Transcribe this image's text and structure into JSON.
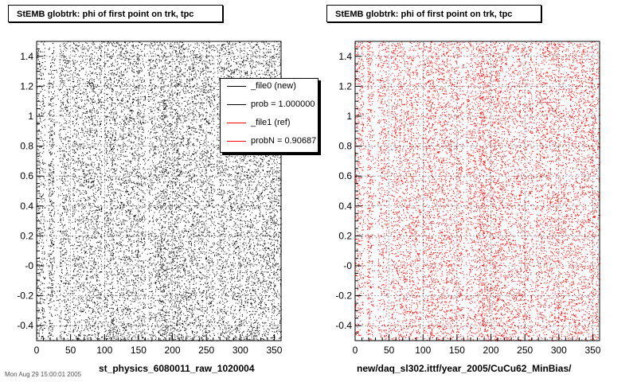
{
  "chart_data": [
    {
      "type": "scatter",
      "title": "StEMB globtrk: phi of first point on trk, tpc",
      "xlabel": "st_physics_6080011_raw_1020004",
      "ylabel": "",
      "xlim": [
        0,
        360
      ],
      "ylim": [
        -0.5,
        1.5
      ],
      "xticks": [
        "0",
        "50",
        "100",
        "150",
        "200",
        "250",
        "300",
        "350"
      ],
      "yticks": [
        "-0.4",
        "-0.2",
        "-0",
        "0.2",
        "0.4",
        "0.6",
        "0.8",
        "1",
        "1.2",
        "1.4"
      ],
      "grid": true,
      "marker_color": "#000000",
      "point_count_estimate": 14000,
      "legend": {
        "placement": "top-right",
        "entries": [
          {
            "label": "_file0 (new)",
            "color": "#000000"
          },
          {
            "label": "prob = 1.000000",
            "color": "#000000"
          },
          {
            "label": "_file1 (ref)",
            "color": "#ff0000"
          },
          {
            "label": "probN = 0.90687",
            "color": "#ff0000"
          }
        ]
      }
    },
    {
      "type": "scatter",
      "title": "StEMB globtrk: phi of first point on trk, tpc",
      "xlabel": "new/daq_sl302.ittf/year_2005/CuCu62_MinBias/",
      "ylabel": "",
      "xlim": [
        0,
        360
      ],
      "ylim": [
        -0.5,
        1.5
      ],
      "xticks": [
        "0",
        "50",
        "100",
        "150",
        "200",
        "250",
        "300",
        "350"
      ],
      "yticks": [
        "-0.4",
        "-0.2",
        "-0",
        "0.2",
        "0.4",
        "0.6",
        "0.8",
        "1",
        "1.2",
        "1.4"
      ],
      "grid": true,
      "marker_color": "#ff0000",
      "point_count_estimate": 14000
    }
  ],
  "footer_clipped_text": "Mon Aug 29 15:00:01 2005"
}
